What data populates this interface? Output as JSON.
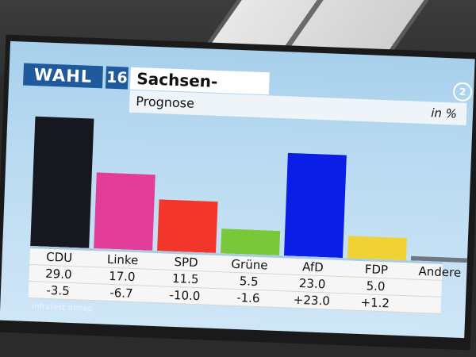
{
  "header": {
    "logo_text": "WAHL",
    "year": "16",
    "region": "Sachsen-Anhalt",
    "subtitle": "Prognose",
    "unit": "in %"
  },
  "source": "infratest dimap",
  "chart_data": {
    "type": "bar",
    "categories": [
      "CDU",
      "Linke",
      "SPD",
      "Grüne",
      "AfD",
      "FDP",
      "Andere"
    ],
    "values": [
      29.0,
      17.0,
      11.5,
      5.5,
      23.0,
      5.0,
      1.0
    ],
    "value_labels": [
      "29.0",
      "17.0",
      "11.5",
      "5.5",
      "23.0",
      "5.0",
      ""
    ],
    "change_labels": [
      "-3.5",
      "-6.7",
      "-10.0",
      "-1.6",
      "+23.0",
      "+1.2",
      ""
    ],
    "colors": [
      "#17171f",
      "#e33d9a",
      "#f2362c",
      "#78c83a",
      "#0a1ee6",
      "#efd236",
      "#707784"
    ],
    "ylim": [
      0,
      30
    ]
  }
}
